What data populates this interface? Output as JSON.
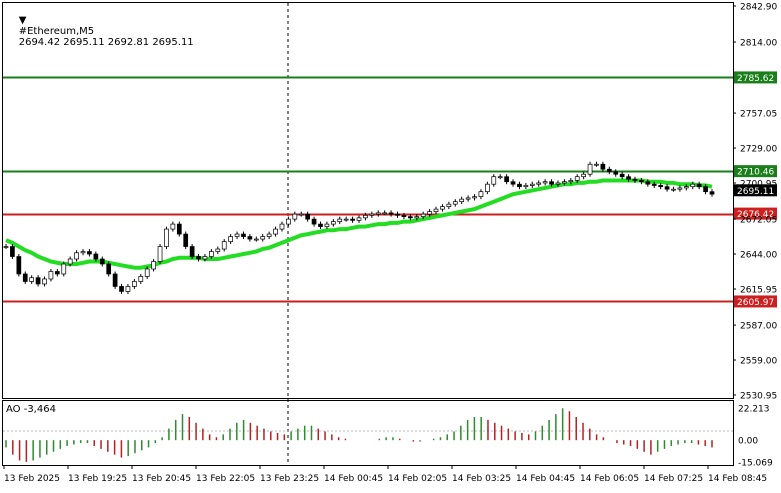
{
  "header": {
    "arrow_glyph": "▼",
    "symbol_timeframe": "#Ethereum,M5",
    "ohlc": "2694.42 2695.11 2692.81 2695.11"
  },
  "oscillator": {
    "label": "AO -3,464",
    "ticks": [
      "22.213",
      "0.00",
      "-15.069"
    ],
    "colors": {
      "up": "#2e8b2e",
      "down": "#b22222"
    }
  },
  "price_axis": {
    "ticks": [
      "2842.90",
      "2814.00",
      "2785.62",
      "2757.05",
      "2729.00",
      "2710.46",
      "2700.95",
      "2695.11",
      "2676.42",
      "2672.05",
      "2644.00",
      "2615.95",
      "2605.97",
      "2587.00",
      "2559.00",
      "2530.95"
    ]
  },
  "time_axis": {
    "labels": [
      "13 Feb 2025",
      "13 Feb 19:25",
      "13 Feb 20:45",
      "13 Feb 22:05",
      "13 Feb 23:25",
      "14 Feb 00:45",
      "14 Feb 02:05",
      "14 Feb 03:25",
      "14 Feb 04:45",
      "14 Feb 06:05",
      "14 Feb 07:25",
      "14 Feb 08:45"
    ]
  },
  "levels": [
    {
      "price": 2785.62,
      "label": "2785.62",
      "color": "#1a7f1a"
    },
    {
      "price": 2710.46,
      "label": "2710.46",
      "color": "#1a7f1a"
    },
    {
      "price": 2676.42,
      "label": "2676.42",
      "color": "#cc1f1f"
    },
    {
      "price": 2605.97,
      "label": "2605.97",
      "color": "#cc1f1f"
    }
  ],
  "current_price": {
    "price": 2695.11,
    "label": "2695.11"
  },
  "chart_data": {
    "type": "candlestick",
    "price_range": [
      2530.95,
      2842.9
    ],
    "moving_average_color": "#22dd22",
    "close_series": [
      2650,
      2642,
      2628,
      2622,
      2625,
      2620,
      2624,
      2630,
      2628,
      2636,
      2640,
      2645,
      2646,
      2644,
      2640,
      2636,
      2628,
      2618,
      2614,
      2618,
      2622,
      2626,
      2632,
      2638,
      2650,
      2664,
      2668,
      2660,
      2650,
      2642,
      2640,
      2642,
      2646,
      2648,
      2654,
      2658,
      2660,
      2658,
      2656,
      2656,
      2658,
      2660,
      2664,
      2668,
      2672,
      2676,
      2676,
      2672,
      2668,
      2666,
      2668,
      2670,
      2672,
      2672,
      2671,
      2673,
      2675,
      2676,
      2677,
      2677,
      2676,
      2675,
      2674,
      2673,
      2674,
      2676,
      2678,
      2680,
      2682,
      2684,
      2686,
      2688,
      2689,
      2690,
      2694,
      2700,
      2706,
      2706,
      2702,
      2700,
      2698,
      2699,
      2700,
      2701,
      2702,
      2700,
      2701,
      2702,
      2703,
      2706,
      2708,
      2716,
      2716,
      2712,
      2710,
      2708,
      2706,
      2704,
      2703,
      2702,
      2700,
      2699,
      2698,
      2696,
      2696,
      2697,
      2698,
      2700,
      2698,
      2694,
      2692
    ],
    "ma_series": [
      2655,
      2653,
      2650,
      2647,
      2645,
      2642,
      2640,
      2638,
      2637,
      2636,
      2636,
      2636,
      2637,
      2638,
      2638,
      2638,
      2637,
      2636,
      2635,
      2634,
      2633,
      2633,
      2634,
      2635,
      2637,
      2638,
      2640,
      2641,
      2641,
      2641,
      2641,
      2640,
      2640,
      2640,
      2641,
      2642,
      2643,
      2644,
      2645,
      2646,
      2648,
      2649,
      2651,
      2653,
      2655,
      2657,
      2659,
      2660,
      2661,
      2662,
      2663,
      2663,
      2664,
      2664,
      2665,
      2666,
      2666,
      2667,
      2668,
      2668,
      2669,
      2669,
      2670,
      2670,
      2671,
      2672,
      2673,
      2674,
      2675,
      2676,
      2677,
      2678,
      2679,
      2680,
      2682,
      2684,
      2686,
      2688,
      2690,
      2692,
      2693,
      2694,
      2695,
      2696,
      2697,
      2698,
      2699,
      2700,
      2700,
      2701,
      2701,
      2702,
      2702,
      2703,
      2703,
      2703,
      2703,
      2703,
      2703,
      2703,
      2702,
      2702,
      2702,
      2701,
      2701,
      2700,
      2700,
      2700,
      2699,
      2699,
      2698
    ],
    "ao_values": [
      -5,
      -10,
      -14,
      -15,
      -14,
      -12,
      -10,
      -8,
      -6,
      -4,
      -3,
      -2,
      -2,
      -4,
      -6,
      -8,
      -10,
      -12,
      -11,
      -9,
      -7,
      -5,
      -2,
      2,
      8,
      14,
      18,
      16,
      12,
      8,
      4,
      2,
      4,
      8,
      12,
      14,
      12,
      10,
      8,
      6,
      5,
      4,
      6,
      8,
      10,
      10,
      8,
      6,
      4,
      2,
      1,
      0,
      0,
      0,
      0,
      1,
      2,
      2,
      1,
      0,
      -1,
      -1,
      0,
      1,
      2,
      4,
      6,
      10,
      14,
      16,
      16,
      14,
      12,
      10,
      8,
      6,
      5,
      4,
      6,
      10,
      14,
      18,
      22,
      20,
      16,
      12,
      8,
      4,
      2,
      0,
      -2,
      -3,
      -4,
      -6,
      -8,
      -10,
      -8,
      -6,
      -4,
      -3,
      -2,
      -2,
      -3,
      -4,
      -5
    ]
  }
}
